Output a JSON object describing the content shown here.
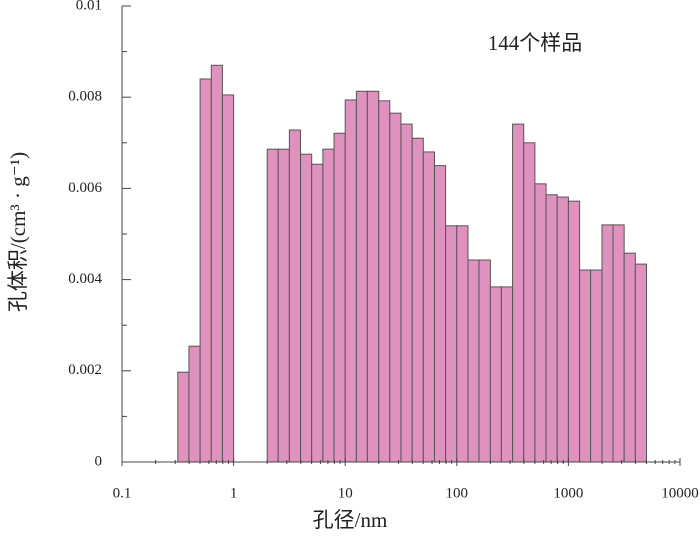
{
  "chart_data": {
    "type": "histogram",
    "annotation": "144个样品",
    "x_label": "孔径/nm",
    "y_label": "孔体积/(cm³ · g⁻¹)",
    "x_scale": "log",
    "bins": [
      0.316,
      0.398,
      0.501,
      0.631,
      0.794,
      1,
      1.26,
      1.58,
      2,
      2.51,
      3.16,
      3.98,
      5.01,
      6.31,
      7.94,
      10,
      12.6,
      15.8,
      20,
      25.1,
      31.6,
      39.8,
      50.1,
      63.1,
      79.4,
      100,
      126,
      158,
      200,
      251,
      316,
      398,
      501,
      631,
      794,
      1000,
      1260,
      1580,
      2000,
      2510,
      3160,
      3980,
      5010
    ],
    "values": [
      0.00197,
      0.00254,
      0.0084,
      0.0087,
      0.00805,
      0,
      0,
      0,
      0.00686,
      0.00686,
      0.00728,
      0.00675,
      0.00653,
      0.00686,
      0.00721,
      0.00794,
      0.00813,
      0.00813,
      0.00792,
      0.00765,
      0.00741,
      0.0071,
      0.0068,
      0.0065,
      0.00518,
      0.00518,
      0.00443,
      0.00443,
      0.00384,
      0.00384,
      0.00741,
      0.007,
      0.0061,
      0.00586,
      0.00581,
      0.00572,
      0.00421,
      0.00421,
      0.0052,
      0.0052,
      0.00458,
      0.00434
    ],
    "color": "#df92bd",
    "edge_color": "#555555",
    "xlim": [
      0.1,
      10000
    ],
    "xticks": [
      0.1,
      1,
      10,
      100,
      1000,
      10000
    ],
    "ylim": [
      0,
      0.01
    ],
    "yticks": [
      0,
      0.002,
      0.004,
      0.006,
      0.008,
      0.01
    ]
  }
}
